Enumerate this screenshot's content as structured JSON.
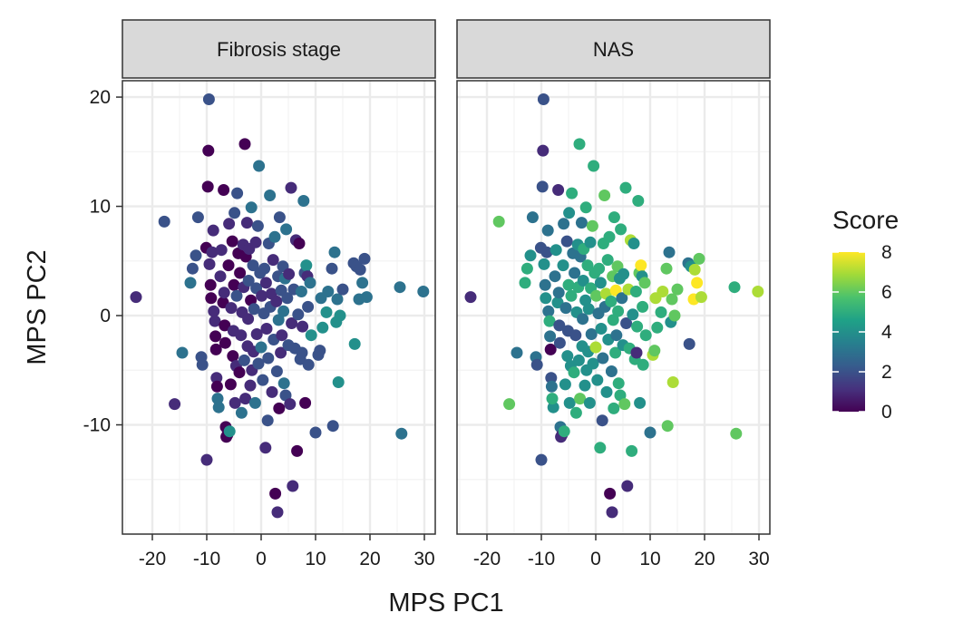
{
  "chart_data": {
    "type": "scatter",
    "xlabel": "MPS PC1",
    "ylabel": "MPS PC2",
    "xlim": [
      -25.5,
      32
    ],
    "ylim": [
      -20,
      21.5
    ],
    "x_ticks": [
      -20,
      -10,
      0,
      10,
      20,
      30
    ],
    "y_ticks": [
      -10,
      0,
      10,
      20
    ],
    "x_tick_labels": [
      "-20",
      "-10",
      "0",
      "10",
      "20",
      "30"
    ],
    "y_tick_labels": [
      "-10",
      "0",
      "10",
      "20"
    ],
    "grid": true,
    "panels": [
      "Fibrosis stage",
      "NAS"
    ],
    "legend": {
      "title": "Score",
      "position": "right",
      "min": 0,
      "max": 8,
      "ticks": [
        0,
        2,
        4,
        6,
        8
      ],
      "tick_labels": [
        "0",
        "2",
        "4",
        "6",
        "8"
      ],
      "palette": [
        "#440154",
        "#46327e",
        "#365c8d",
        "#277f8e",
        "#1fa187",
        "#4ac16d",
        "#a0da39",
        "#fde725"
      ]
    },
    "points": [
      {
        "x": -23.0,
        "y": 1.7,
        "f": 1,
        "n": 1
      },
      {
        "x": -17.8,
        "y": 8.6,
        "f": 2,
        "n": 6
      },
      {
        "x": -15.9,
        "y": -8.1,
        "f": 1,
        "n": 6
      },
      {
        "x": -14.5,
        "y": -3.4,
        "f": 3,
        "n": 3
      },
      {
        "x": -13.0,
        "y": 3.0,
        "f": 3,
        "n": 5
      },
      {
        "x": -12.6,
        "y": 4.3,
        "f": 2,
        "n": 5
      },
      {
        "x": -12.0,
        "y": 5.5,
        "f": 2,
        "n": 4
      },
      {
        "x": -11.6,
        "y": 9.0,
        "f": 2,
        "n": 3
      },
      {
        "x": -11.0,
        "y": -3.8,
        "f": 2,
        "n": 3
      },
      {
        "x": -10.8,
        "y": -4.5,
        "f": 2,
        "n": 2
      },
      {
        "x": -10.0,
        "y": -13.2,
        "f": 1,
        "n": 2
      },
      {
        "x": -10.1,
        "y": 6.2,
        "f": 0,
        "n": 2
      },
      {
        "x": -9.8,
        "y": 11.8,
        "f": 0,
        "n": 2
      },
      {
        "x": -9.7,
        "y": 15.1,
        "f": 0,
        "n": 1
      },
      {
        "x": -9.6,
        "y": 19.8,
        "f": 2,
        "n": 2
      },
      {
        "x": -9.5,
        "y": 4.7,
        "f": 1,
        "n": 4
      },
      {
        "x": -9.3,
        "y": 2.8,
        "f": 0,
        "n": 3
      },
      {
        "x": -9.2,
        "y": 1.6,
        "f": 0,
        "n": 4
      },
      {
        "x": -9.0,
        "y": 5.8,
        "f": 1,
        "n": 2
      },
      {
        "x": -8.8,
        "y": 7.8,
        "f": 1,
        "n": 3
      },
      {
        "x": -8.7,
        "y": 0.4,
        "f": 1,
        "n": 3
      },
      {
        "x": -8.5,
        "y": -0.5,
        "f": 1,
        "n": 5
      },
      {
        "x": -8.4,
        "y": -1.9,
        "f": 0,
        "n": 3
      },
      {
        "x": -8.3,
        "y": -3.1,
        "f": 0,
        "n": 0
      },
      {
        "x": -8.2,
        "y": -5.7,
        "f": 1,
        "n": 2
      },
      {
        "x": -8.1,
        "y": -6.5,
        "f": 0,
        "n": 3
      },
      {
        "x": -7.8,
        "y": -8.4,
        "f": 3,
        "n": 4
      },
      {
        "x": -8.0,
        "y": -7.6,
        "f": 3,
        "n": 5
      },
      {
        "x": -7.5,
        "y": 3.6,
        "f": 1,
        "n": 3
      },
      {
        "x": -7.3,
        "y": 6.0,
        "f": 1,
        "n": 4
      },
      {
        "x": -7.0,
        "y": 1.2,
        "f": 0,
        "n": 4
      },
      {
        "x": -6.8,
        "y": 2.1,
        "f": 1,
        "n": 3
      },
      {
        "x": -6.9,
        "y": 11.5,
        "f": 0,
        "n": 1
      },
      {
        "x": -6.7,
        "y": -0.9,
        "f": 0,
        "n": 2
      },
      {
        "x": -6.6,
        "y": -2.5,
        "f": 0,
        "n": 2
      },
      {
        "x": -6.5,
        "y": -10.2,
        "f": 0,
        "n": 3
      },
      {
        "x": -6.4,
        "y": -11.1,
        "f": 0,
        "n": 1
      },
      {
        "x": -6.2,
        "y": -10.9,
        "f": 0,
        "n": 1
      },
      {
        "x": -6.0,
        "y": 4.6,
        "f": 0,
        "n": 4
      },
      {
        "x": -5.9,
        "y": 8.4,
        "f": 1,
        "n": 3
      },
      {
        "x": -5.8,
        "y": -10.6,
        "f": 4,
        "n": 5
      },
      {
        "x": -5.6,
        "y": -6.3,
        "f": 0,
        "n": 4
      },
      {
        "x": -5.5,
        "y": 0.7,
        "f": 1,
        "n": 3
      },
      {
        "x": -5.3,
        "y": 6.8,
        "f": 0,
        "n": 2
      },
      {
        "x": -5.2,
        "y": -3.7,
        "f": 0,
        "n": 4
      },
      {
        "x": -5.1,
        "y": -1.4,
        "f": 1,
        "n": 2
      },
      {
        "x": -5.0,
        "y": 2.8,
        "f": 0,
        "n": 5
      },
      {
        "x": -4.9,
        "y": 9.4,
        "f": 2,
        "n": 4
      },
      {
        "x": -4.8,
        "y": -8.0,
        "f": 1,
        "n": 4
      },
      {
        "x": -4.6,
        "y": -4.6,
        "f": 1,
        "n": 4
      },
      {
        "x": -4.5,
        "y": 1.8,
        "f": 2,
        "n": 5
      },
      {
        "x": -4.4,
        "y": 11.2,
        "f": 2,
        "n": 5
      },
      {
        "x": -4.2,
        "y": 5.7,
        "f": 0,
        "n": 3
      },
      {
        "x": -4.0,
        "y": -5.2,
        "f": 0,
        "n": 5
      },
      {
        "x": -3.9,
        "y": 3.9,
        "f": 0,
        "n": 3
      },
      {
        "x": -3.7,
        "y": -1.8,
        "f": 1,
        "n": 2
      },
      {
        "x": -3.6,
        "y": -8.9,
        "f": 3,
        "n": 5
      },
      {
        "x": -3.5,
        "y": 0.3,
        "f": 1,
        "n": 4
      },
      {
        "x": -3.3,
        "y": 6.5,
        "f": 1,
        "n": 4
      },
      {
        "x": -3.2,
        "y": 2.6,
        "f": 1,
        "n": 5
      },
      {
        "x": -3.1,
        "y": -4.1,
        "f": 2,
        "n": 4
      },
      {
        "x": -3.0,
        "y": 15.7,
        "f": 0,
        "n": 5
      },
      {
        "x": -2.9,
        "y": -7.6,
        "f": 1,
        "n": 6
      },
      {
        "x": -2.8,
        "y": 5.4,
        "f": 0,
        "n": 3
      },
      {
        "x": -2.6,
        "y": 8.5,
        "f": 1,
        "n": 3
      },
      {
        "x": -2.5,
        "y": -2.8,
        "f": 1,
        "n": 4
      },
      {
        "x": -2.4,
        "y": -0.3,
        "f": 1,
        "n": 3
      },
      {
        "x": -2.3,
        "y": 3.2,
        "f": 2,
        "n": 4
      },
      {
        "x": -2.2,
        "y": 6.1,
        "f": 1,
        "n": 5
      },
      {
        "x": -2.0,
        "y": -6.4,
        "f": 1,
        "n": 4
      },
      {
        "x": -1.9,
        "y": 1.4,
        "f": 0,
        "n": 4
      },
      {
        "x": -1.8,
        "y": 9.9,
        "f": 3,
        "n": 5
      },
      {
        "x": -1.7,
        "y": -5.0,
        "f": 1,
        "n": 4
      },
      {
        "x": -1.5,
        "y": 4.6,
        "f": 2,
        "n": 5
      },
      {
        "x": -1.4,
        "y": -3.3,
        "f": 1,
        "n": 4
      },
      {
        "x": -1.3,
        "y": 0.6,
        "f": 2,
        "n": 4
      },
      {
        "x": -1.1,
        "y": -8.0,
        "f": 3,
        "n": 4
      },
      {
        "x": -1.0,
        "y": 6.7,
        "f": 1,
        "n": 4
      },
      {
        "x": -0.9,
        "y": 2.5,
        "f": 2,
        "n": 5
      },
      {
        "x": -0.8,
        "y": -1.7,
        "f": 1,
        "n": 3
      },
      {
        "x": -0.6,
        "y": 8.2,
        "f": 2,
        "n": 6
      },
      {
        "x": -0.5,
        "y": -4.4,
        "f": 2,
        "n": 4
      },
      {
        "x": -0.4,
        "y": 13.7,
        "f": 3,
        "n": 5
      },
      {
        "x": -0.2,
        "y": 3.9,
        "f": 2,
        "n": 5
      },
      {
        "x": 0.0,
        "y": -2.9,
        "f": 3,
        "n": 7
      },
      {
        "x": 0.1,
        "y": 1.8,
        "f": 1,
        "n": 6
      },
      {
        "x": 0.3,
        "y": -5.9,
        "f": 2,
        "n": 4
      },
      {
        "x": 0.5,
        "y": 0.2,
        "f": 2,
        "n": 3
      },
      {
        "x": 0.6,
        "y": 4.3,
        "f": 2,
        "n": 5
      },
      {
        "x": 0.8,
        "y": -12.1,
        "f": 1,
        "n": 5
      },
      {
        "x": 0.9,
        "y": 3.0,
        "f": 1,
        "n": 4
      },
      {
        "x": 1.0,
        "y": -1.2,
        "f": 1,
        "n": 4
      },
      {
        "x": 1.2,
        "y": -9.6,
        "f": 2,
        "n": 2
      },
      {
        "x": 1.3,
        "y": -3.9,
        "f": 2,
        "n": 3
      },
      {
        "x": 1.4,
        "y": 6.6,
        "f": 2,
        "n": 5
      },
      {
        "x": 1.6,
        "y": 11.0,
        "f": 3,
        "n": 6
      },
      {
        "x": 1.7,
        "y": 0.8,
        "f": 2,
        "n": 3
      },
      {
        "x": 1.9,
        "y": 2.0,
        "f": 1,
        "n": 7
      },
      {
        "x": 2.0,
        "y": -7.0,
        "f": 1,
        "n": 4
      },
      {
        "x": 2.2,
        "y": 5.1,
        "f": 1,
        "n": 5
      },
      {
        "x": 2.3,
        "y": -2.2,
        "f": 2,
        "n": 4
      },
      {
        "x": 2.5,
        "y": 7.2,
        "f": 3,
        "n": 5
      },
      {
        "x": 2.6,
        "y": -16.3,
        "f": 0,
        "n": 0
      },
      {
        "x": 2.8,
        "y": 1.3,
        "f": 1,
        "n": 5
      },
      {
        "x": 2.9,
        "y": -5.1,
        "f": 2,
        "n": 3
      },
      {
        "x": 3.0,
        "y": -18.0,
        "f": 1,
        "n": 1
      },
      {
        "x": 3.1,
        "y": 3.6,
        "f": 2,
        "n": 6
      },
      {
        "x": 3.2,
        "y": -0.4,
        "f": 3,
        "n": 5
      },
      {
        "x": 3.3,
        "y": -8.5,
        "f": 0,
        "n": 5
      },
      {
        "x": 3.4,
        "y": 9.0,
        "f": 2,
        "n": 5
      },
      {
        "x": 3.6,
        "y": -3.4,
        "f": 1,
        "n": 5
      },
      {
        "x": 3.7,
        "y": 2.3,
        "f": 2,
        "n": 8
      },
      {
        "x": 3.8,
        "y": -1.8,
        "f": 1,
        "n": 3
      },
      {
        "x": 4.0,
        "y": 4.5,
        "f": 2,
        "n": 6
      },
      {
        "x": 4.1,
        "y": 0.4,
        "f": 3,
        "n": 5
      },
      {
        "x": 4.2,
        "y": -6.2,
        "f": 3,
        "n": 5
      },
      {
        "x": 4.4,
        "y": 3.4,
        "f": 3,
        "n": 4
      },
      {
        "x": 4.5,
        "y": -7.3,
        "f": 2,
        "n": 5
      },
      {
        "x": 4.6,
        "y": 7.9,
        "f": 3,
        "n": 5
      },
      {
        "x": 4.8,
        "y": 1.6,
        "f": 2,
        "n": 3
      },
      {
        "x": 5.0,
        "y": -2.7,
        "f": 2,
        "n": 4
      },
      {
        "x": 5.1,
        "y": 3.8,
        "f": 1,
        "n": 4
      },
      {
        "x": 5.3,
        "y": -8.1,
        "f": 1,
        "n": 6
      },
      {
        "x": 5.5,
        "y": 11.7,
        "f": 1,
        "n": 5
      },
      {
        "x": 5.6,
        "y": -0.7,
        "f": 1,
        "n": 2
      },
      {
        "x": 5.8,
        "y": -15.6,
        "f": 1,
        "n": 1
      },
      {
        "x": 6.0,
        "y": 2.4,
        "f": 2,
        "n": 7
      },
      {
        "x": 6.2,
        "y": -3.0,
        "f": 2,
        "n": 5
      },
      {
        "x": 6.4,
        "y": 6.9,
        "f": 1,
        "n": 7
      },
      {
        "x": 6.6,
        "y": -12.4,
        "f": 0,
        "n": 5
      },
      {
        "x": 6.8,
        "y": 0.1,
        "f": 2,
        "n": 4
      },
      {
        "x": 7.0,
        "y": 6.6,
        "f": 0,
        "n": 4
      },
      {
        "x": 7.2,
        "y": -4.0,
        "f": 2,
        "n": 5
      },
      {
        "x": 7.4,
        "y": 2.2,
        "f": 3,
        "n": 5
      },
      {
        "x": 7.5,
        "y": -3.4,
        "f": 2,
        "n": 1
      },
      {
        "x": 7.6,
        "y": -1.0,
        "f": 1,
        "n": 5
      },
      {
        "x": 7.8,
        "y": 10.5,
        "f": 3,
        "n": 5
      },
      {
        "x": 8.0,
        "y": 3.9,
        "f": 2,
        "n": 6
      },
      {
        "x": 8.1,
        "y": -8.0,
        "f": 0,
        "n": 4
      },
      {
        "x": 8.3,
        "y": 4.6,
        "f": 4,
        "n": 8
      },
      {
        "x": 8.5,
        "y": 3.6,
        "f": 1,
        "n": 4
      },
      {
        "x": 8.6,
        "y": 0.8,
        "f": 2,
        "n": 5
      },
      {
        "x": 8.7,
        "y": -4.5,
        "f": 2,
        "n": 5
      },
      {
        "x": 9.0,
        "y": 3.0,
        "f": 3,
        "n": 6
      },
      {
        "x": 9.2,
        "y": -1.8,
        "f": 4,
        "n": 5
      },
      {
        "x": 10.0,
        "y": -10.7,
        "f": 2,
        "n": 3
      },
      {
        "x": 10.5,
        "y": -3.6,
        "f": 2,
        "n": 7
      },
      {
        "x": 10.8,
        "y": -3.2,
        "f": 2,
        "n": 6
      },
      {
        "x": 11.0,
        "y": 1.6,
        "f": 3,
        "n": 7
      },
      {
        "x": 11.3,
        "y": -1.1,
        "f": 4,
        "n": 5
      },
      {
        "x": 12.0,
        "y": 0.3,
        "f": 4,
        "n": 5
      },
      {
        "x": 12.3,
        "y": 2.2,
        "f": 3,
        "n": 7
      },
      {
        "x": 13.0,
        "y": 4.3,
        "f": 2,
        "n": 6
      },
      {
        "x": 13.2,
        "y": -10.1,
        "f": 2,
        "n": 6
      },
      {
        "x": 13.5,
        "y": 5.8,
        "f": 3,
        "n": 3
      },
      {
        "x": 13.8,
        "y": -0.6,
        "f": 4,
        "n": 4
      },
      {
        "x": 14.0,
        "y": 1.5,
        "f": 3,
        "n": 6
      },
      {
        "x": 14.2,
        "y": -6.1,
        "f": 4,
        "n": 7
      },
      {
        "x": 14.5,
        "y": 0.0,
        "f": 4,
        "n": 6
      },
      {
        "x": 15.0,
        "y": 2.4,
        "f": 2,
        "n": 6
      },
      {
        "x": 17.0,
        "y": 4.8,
        "f": 2,
        "n": 3
      },
      {
        "x": 17.2,
        "y": -2.6,
        "f": 4,
        "n": 2
      },
      {
        "x": 17.5,
        "y": 4.5,
        "f": 2,
        "n": 4
      },
      {
        "x": 18.0,
        "y": 1.5,
        "f": 3,
        "n": 8
      },
      {
        "x": 18.2,
        "y": 4.2,
        "f": 2,
        "n": 7
      },
      {
        "x": 18.6,
        "y": 3.0,
        "f": 3,
        "n": 8
      },
      {
        "x": 19.0,
        "y": 5.2,
        "f": 2,
        "n": 6
      },
      {
        "x": 19.4,
        "y": 1.7,
        "f": 3,
        "n": 7
      },
      {
        "x": 25.5,
        "y": 2.6,
        "f": 3,
        "n": 5
      },
      {
        "x": 25.8,
        "y": -10.8,
        "f": 3,
        "n": 6
      },
      {
        "x": 29.8,
        "y": 2.2,
        "f": 3,
        "n": 7
      }
    ]
  }
}
